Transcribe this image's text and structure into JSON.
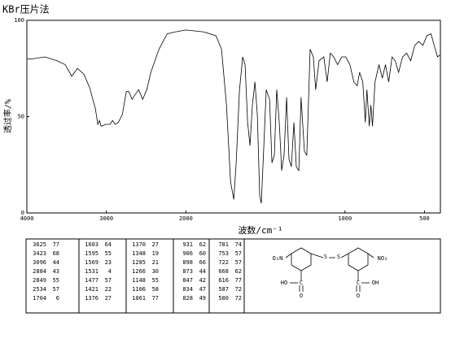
{
  "chart_data": {
    "type": "line",
    "title": "KBr压片法",
    "xlabel": "波数/cm⁻¹",
    "ylabel": "透过率/%",
    "xlim": [
      4000,
      400
    ],
    "xbreak": 2000,
    "xticks": [
      4000,
      3000,
      2000,
      1000,
      500
    ],
    "ylim": [
      0,
      100
    ],
    "yticks": [
      0,
      50,
      100
    ],
    "color": "#000000",
    "x": [
      4000,
      3928,
      3774,
      3620,
      3518,
      3436,
      3364,
      3282,
      3210,
      3138,
      3108,
      3087,
      3067,
      3005,
      2954,
      2923,
      2892,
      2851,
      2800,
      2749,
      2718,
      2677,
      2646,
      2595,
      2544,
      2492,
      2441,
      2338,
      2236,
      2133,
      2000,
      1888,
      1811,
      1776,
      1745,
      1719,
      1699,
      1684,
      1663,
      1643,
      1628,
      1612,
      1597,
      1582,
      1566,
      1551,
      1536,
      1526,
      1510,
      1495,
      1474,
      1459,
      1444,
      1429,
      1413,
      1398,
      1383,
      1367,
      1352,
      1337,
      1321,
      1306,
      1290,
      1276,
      1255,
      1240,
      1219,
      1199,
      1184,
      1163,
      1133,
      1112,
      1092,
      1071,
      1046,
      1020,
      995,
      969,
      944,
      923,
      908,
      888,
      872,
      862,
      847,
      837,
      827,
      811,
      786,
      765,
      745,
      725,
      704,
      684,
      663,
      638,
      612,
      587,
      561,
      536,
      510,
      485,
      459,
      439,
      418,
      403
    ],
    "values": [
      80,
      80,
      81,
      79,
      77,
      71,
      75,
      72,
      65,
      54,
      46,
      48,
      45,
      46,
      46,
      48,
      46,
      47,
      51,
      63,
      63,
      59,
      61,
      64,
      59,
      64,
      73,
      85,
      93,
      94,
      95,
      94,
      92,
      85,
      56,
      16,
      7,
      26,
      64,
      81,
      77,
      47,
      35,
      56,
      68,
      51,
      9,
      5,
      35,
      64,
      59,
      26,
      30,
      64,
      47,
      22,
      30,
      60,
      28,
      24,
      47,
      24,
      22,
      60,
      32,
      30,
      85,
      81,
      64,
      79,
      81,
      68,
      83,
      81,
      77,
      81,
      81,
      77,
      68,
      66,
      73,
      68,
      47,
      64,
      45,
      56,
      45,
      68,
      77,
      70,
      77,
      68,
      81,
      79,
      73,
      81,
      83,
      79,
      87,
      89,
      87,
      92,
      93,
      87,
      81,
      82
    ]
  },
  "peak_table": {
    "columns": [
      [
        [
          "3625",
          "77"
        ],
        [
          "3423",
          "68"
        ],
        [
          "3096",
          "44"
        ],
        [
          "2884",
          "43"
        ],
        [
          "2849",
          "55"
        ],
        [
          "2534",
          "57"
        ],
        [
          "1704",
          "6"
        ]
      ],
      [
        [
          "1603",
          "64"
        ],
        [
          "1595",
          "55"
        ],
        [
          "1569",
          "23"
        ],
        [
          "1531",
          "4"
        ],
        [
          "1477",
          "57"
        ],
        [
          "1421",
          "22"
        ],
        [
          "1376",
          "27"
        ]
      ],
      [
        [
          "1370",
          "27"
        ],
        [
          "1348",
          "19"
        ],
        [
          "1285",
          "21"
        ],
        [
          "1266",
          "30"
        ],
        [
          "1148",
          "55"
        ],
        [
          "1106",
          "58"
        ],
        [
          "1061",
          "77"
        ]
      ],
      [
        [
          "931",
          "62"
        ],
        [
          "906",
          "60"
        ],
        [
          "898",
          "66"
        ],
        [
          "873",
          "44"
        ],
        [
          "847",
          "42"
        ],
        [
          "834",
          "47"
        ],
        [
          "828",
          "49"
        ]
      ],
      [
        [
          "781",
          "74"
        ],
        [
          "753",
          "57"
        ],
        [
          "722",
          "57"
        ],
        [
          "668",
          "62"
        ],
        [
          "616",
          "77"
        ],
        [
          "587",
          "72"
        ],
        [
          "580",
          "72"
        ]
      ]
    ]
  },
  "structure": {
    "left_nitro": "O₂N",
    "sulfur_1": "S",
    "sulfur_2": "S",
    "right_nitro": "NO₂",
    "left_hydroxyl": "HO",
    "right_hydroxyl": "OH",
    "left_carbon": "C",
    "right_carbon": "C",
    "left_oxygen": "O",
    "right_oxygen": "O"
  }
}
